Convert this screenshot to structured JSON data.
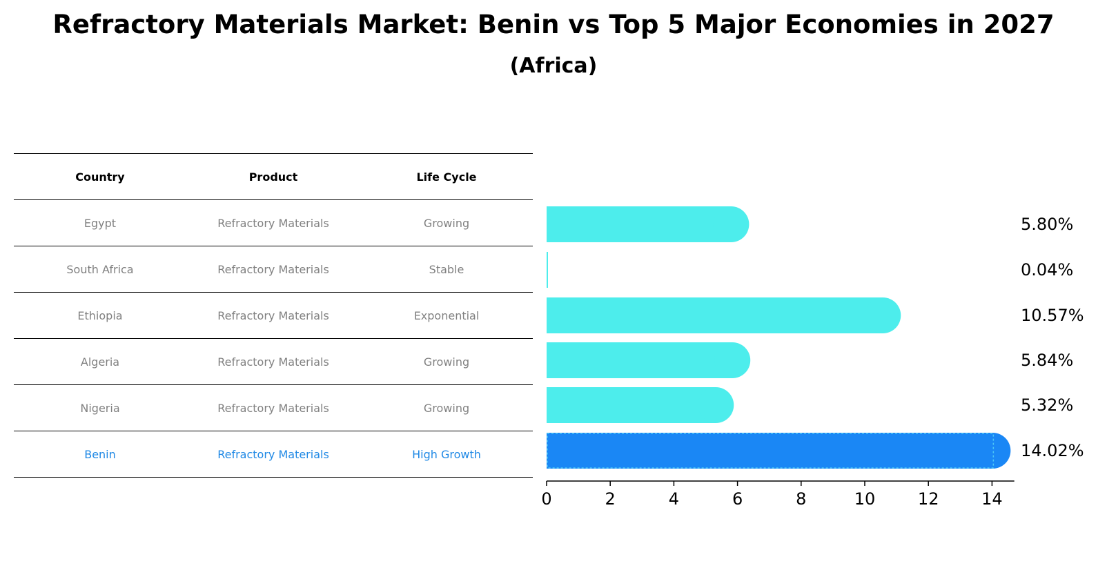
{
  "header": {
    "title": "Refractory Materials Market: Benin vs Top 5 Major Economies in 2027",
    "subtitle": "(Africa)"
  },
  "table": {
    "columns": [
      "Country",
      "Product",
      "Life Cycle"
    ],
    "rows": [
      {
        "country": "Egypt",
        "product": "Refractory Materials",
        "life_cycle": "Growing"
      },
      {
        "country": "South Africa",
        "product": "Refractory Materials",
        "life_cycle": "Stable"
      },
      {
        "country": "Ethiopia",
        "product": "Refractory Materials",
        "life_cycle": "Exponential"
      },
      {
        "country": "Algeria",
        "product": "Refractory Materials",
        "life_cycle": "Growing"
      },
      {
        "country": "Nigeria",
        "product": "Refractory Materials",
        "life_cycle": "Growing"
      },
      {
        "country": "Benin",
        "product": "Refractory Materials",
        "life_cycle": "High Growth"
      }
    ]
  },
  "colors": {
    "bar": "#4dedec",
    "highlight": "#1a87f5",
    "highlight_text": "#1e88e5",
    "muted_text": "#808080"
  },
  "chart_data": {
    "type": "bar",
    "orientation": "horizontal",
    "categories": [
      "Egypt",
      "South Africa",
      "Ethiopia",
      "Algeria",
      "Nigeria",
      "Benin"
    ],
    "values": [
      5.8,
      0.04,
      10.57,
      5.84,
      5.32,
      14.02
    ],
    "value_labels": [
      "5.80%",
      "0.04%",
      "10.57%",
      "5.84%",
      "5.32%",
      "14.02%"
    ],
    "highlight": "Benin",
    "xlim": [
      0,
      14.7
    ],
    "xticks": [
      0,
      2,
      4,
      6,
      8,
      10,
      12,
      14
    ],
    "xlabel": "",
    "ylabel": "",
    "grid": false
  }
}
